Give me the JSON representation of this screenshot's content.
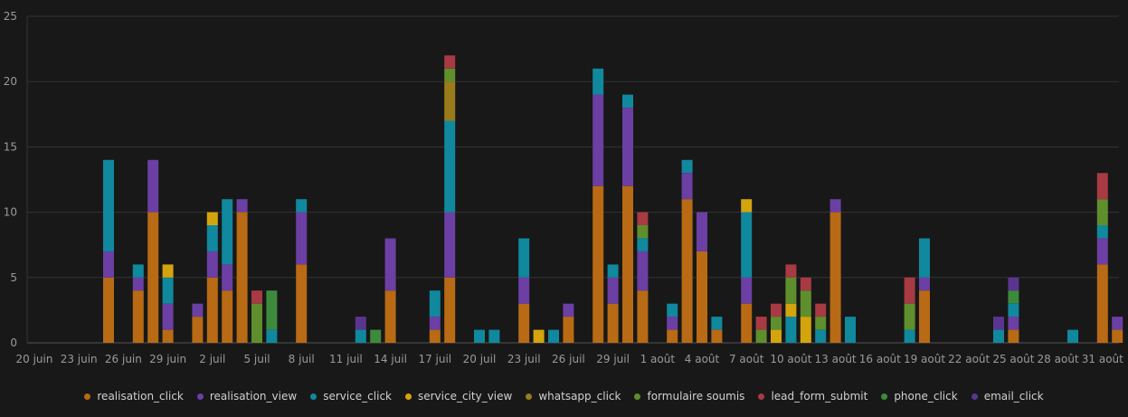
{
  "chart_data": {
    "type": "bar",
    "stacked": true,
    "ylim": [
      0,
      25
    ],
    "yticks": [
      0,
      5,
      10,
      15,
      20,
      25
    ],
    "grid": true,
    "legend_position": "bottom",
    "x": [
      "2025-06-20",
      "2025-06-21",
      "2025-06-22",
      "2025-06-23",
      "2025-06-24",
      "2025-06-25",
      "2025-06-26",
      "2025-06-27",
      "2025-06-28",
      "2025-06-29",
      "2025-06-30",
      "2025-07-01",
      "2025-07-02",
      "2025-07-03",
      "2025-07-04",
      "2025-07-05",
      "2025-07-06",
      "2025-07-07",
      "2025-07-08",
      "2025-07-09",
      "2025-07-10",
      "2025-07-11",
      "2025-07-12",
      "2025-07-13",
      "2025-07-14",
      "2025-07-15",
      "2025-07-16",
      "2025-07-17",
      "2025-07-18",
      "2025-07-19",
      "2025-07-20",
      "2025-07-21",
      "2025-07-22",
      "2025-07-23",
      "2025-07-24",
      "2025-07-25",
      "2025-07-26",
      "2025-07-27",
      "2025-07-28",
      "2025-07-29",
      "2025-07-30",
      "2025-07-31",
      "2025-08-01",
      "2025-08-02",
      "2025-08-03",
      "2025-08-04",
      "2025-08-05",
      "2025-08-06",
      "2025-08-07",
      "2025-08-08",
      "2025-08-09",
      "2025-08-10",
      "2025-08-11",
      "2025-08-12",
      "2025-08-13",
      "2025-08-14",
      "2025-08-15",
      "2025-08-16",
      "2025-08-17",
      "2025-08-18",
      "2025-08-19",
      "2025-08-20",
      "2025-08-21",
      "2025-08-22",
      "2025-08-23",
      "2025-08-24",
      "2025-08-25",
      "2025-08-26",
      "2025-08-27",
      "2025-08-28",
      "2025-08-29",
      "2025-08-30",
      "2025-08-31",
      "2025-09-01"
    ],
    "xticks": [
      {
        "index": 0,
        "label": "20 juin"
      },
      {
        "index": 3,
        "label": "23 juin"
      },
      {
        "index": 6,
        "label": "26 juin"
      },
      {
        "index": 9,
        "label": "29 juin"
      },
      {
        "index": 12,
        "label": "2 juil"
      },
      {
        "index": 15,
        "label": "5 juil"
      },
      {
        "index": 18,
        "label": "8 juil"
      },
      {
        "index": 21,
        "label": "11 juil"
      },
      {
        "index": 24,
        "label": "14 juil"
      },
      {
        "index": 27,
        "label": "17 juil"
      },
      {
        "index": 30,
        "label": "20 juil"
      },
      {
        "index": 33,
        "label": "23 juil"
      },
      {
        "index": 36,
        "label": "26 juil"
      },
      {
        "index": 39,
        "label": "29 juil"
      },
      {
        "index": 42,
        "label": "1 août"
      },
      {
        "index": 45,
        "label": "4 août"
      },
      {
        "index": 48,
        "label": "7 août"
      },
      {
        "index": 51,
        "label": "10 août"
      },
      {
        "index": 54,
        "label": "13 août"
      },
      {
        "index": 57,
        "label": "16 août"
      },
      {
        "index": 60,
        "label": "19 août"
      },
      {
        "index": 63,
        "label": "22 août"
      },
      {
        "index": 66,
        "label": "25 août"
      },
      {
        "index": 69,
        "label": "28 août"
      },
      {
        "index": 72,
        "label": "31 août"
      }
    ],
    "series": [
      {
        "name": "realisation_click",
        "color": "#b86a14",
        "values": [
          0,
          0,
          0,
          0,
          0,
          5,
          0,
          4,
          10,
          1,
          0,
          2,
          5,
          4,
          10,
          0,
          0,
          0,
          6,
          0,
          0,
          0,
          0,
          0,
          4,
          0,
          0,
          1,
          5,
          0,
          0,
          0,
          0,
          3,
          0,
          0,
          2,
          0,
          12,
          3,
          12,
          4,
          0,
          1,
          11,
          7,
          1,
          0,
          3,
          0,
          0,
          0,
          0,
          0,
          10,
          0,
          0,
          0,
          0,
          0,
          4,
          0,
          0,
          0,
          0,
          0,
          1,
          0,
          0,
          0,
          0,
          0,
          6,
          1
        ]
      },
      {
        "name": "realisation_view",
        "color": "#6c3fa4",
        "values": [
          0,
          0,
          0,
          0,
          0,
          2,
          0,
          1,
          4,
          2,
          0,
          1,
          2,
          2,
          1,
          0,
          0,
          0,
          4,
          0,
          0,
          0,
          0,
          0,
          4,
          0,
          0,
          1,
          5,
          0,
          0,
          0,
          0,
          2,
          0,
          0,
          1,
          0,
          7,
          2,
          6,
          3,
          0,
          1,
          2,
          3,
          0,
          0,
          2,
          0,
          0,
          0,
          0,
          0,
          1,
          0,
          0,
          0,
          0,
          0,
          1,
          0,
          0,
          0,
          0,
          0,
          1,
          0,
          0,
          0,
          0,
          0,
          2,
          1
        ]
      },
      {
        "name": "service_click",
        "color": "#10889e",
        "values": [
          0,
          0,
          0,
          0,
          0,
          7,
          0,
          1,
          0,
          2,
          0,
          0,
          2,
          5,
          0,
          0,
          1,
          0,
          1,
          0,
          0,
          0,
          1,
          0,
          0,
          0,
          0,
          2,
          7,
          0,
          1,
          1,
          0,
          3,
          0,
          1,
          0,
          0,
          2,
          1,
          1,
          1,
          0,
          1,
          1,
          0,
          1,
          0,
          5,
          0,
          0,
          2,
          0,
          1,
          0,
          2,
          0,
          0,
          0,
          1,
          3,
          0,
          0,
          0,
          0,
          1,
          1,
          0,
          0,
          0,
          1,
          0,
          1,
          0
        ]
      },
      {
        "name": "service_city_view",
        "color": "#d4a40e",
        "values": [
          0,
          0,
          0,
          0,
          0,
          0,
          0,
          0,
          0,
          1,
          0,
          0,
          1,
          0,
          0,
          0,
          0,
          0,
          0,
          0,
          0,
          0,
          0,
          0,
          0,
          0,
          0,
          0,
          0,
          0,
          0,
          0,
          0,
          0,
          1,
          0,
          0,
          0,
          0,
          0,
          0,
          0,
          0,
          0,
          0,
          0,
          0,
          0,
          1,
          0,
          1,
          1,
          2,
          0,
          0,
          0,
          0,
          0,
          0,
          0,
          0,
          0,
          0,
          0,
          0,
          0,
          0,
          0,
          0,
          0,
          0,
          0,
          0,
          0
        ]
      },
      {
        "name": "whatsapp_click",
        "color": "#9a7b1c",
        "values": [
          0,
          0,
          0,
          0,
          0,
          0,
          0,
          0,
          0,
          0,
          0,
          0,
          0,
          0,
          0,
          0,
          0,
          0,
          0,
          0,
          0,
          0,
          0,
          0,
          0,
          0,
          0,
          0,
          3,
          0,
          0,
          0,
          0,
          0,
          0,
          0,
          0,
          0,
          0,
          0,
          0,
          0,
          0,
          0,
          0,
          0,
          0,
          0,
          0,
          0,
          0,
          0,
          0,
          0,
          0,
          0,
          0,
          0,
          0,
          0,
          0,
          0,
          0,
          0,
          0,
          0,
          0,
          0,
          0,
          0,
          0,
          0,
          0,
          0
        ]
      },
      {
        "name": "formulaire soumis",
        "color": "#5e8f2c",
        "values": [
          0,
          0,
          0,
          0,
          0,
          0,
          0,
          0,
          0,
          0,
          0,
          0,
          0,
          0,
          0,
          3,
          0,
          0,
          0,
          0,
          0,
          0,
          0,
          0,
          0,
          0,
          0,
          0,
          1,
          0,
          0,
          0,
          0,
          0,
          0,
          0,
          0,
          0,
          0,
          0,
          0,
          1,
          0,
          0,
          0,
          0,
          0,
          0,
          0,
          1,
          1,
          2,
          2,
          1,
          0,
          0,
          0,
          0,
          0,
          2,
          0,
          0,
          0,
          0,
          0,
          0,
          0,
          0,
          0,
          0,
          0,
          0,
          2,
          0
        ]
      },
      {
        "name": "lead_form_submit",
        "color": "#a83a44",
        "values": [
          0,
          0,
          0,
          0,
          0,
          0,
          0,
          0,
          0,
          0,
          0,
          0,
          0,
          0,
          0,
          1,
          0,
          0,
          0,
          0,
          0,
          0,
          0,
          0,
          0,
          0,
          0,
          0,
          1,
          0,
          0,
          0,
          0,
          0,
          0,
          0,
          0,
          0,
          0,
          0,
          0,
          1,
          0,
          0,
          0,
          0,
          0,
          0,
          0,
          1,
          1,
          1,
          1,
          1,
          0,
          0,
          0,
          0,
          0,
          2,
          0,
          0,
          0,
          0,
          0,
          0,
          0,
          0,
          0,
          0,
          0,
          0,
          2,
          0
        ]
      },
      {
        "name": "phone_click",
        "color": "#3d8a3d",
        "values": [
          0,
          0,
          0,
          0,
          0,
          0,
          0,
          0,
          0,
          0,
          0,
          0,
          0,
          0,
          0,
          0,
          3,
          0,
          0,
          0,
          0,
          0,
          0,
          1,
          0,
          0,
          0,
          0,
          0,
          0,
          0,
          0,
          0,
          0,
          0,
          0,
          0,
          0,
          0,
          0,
          0,
          0,
          0,
          0,
          0,
          0,
          0,
          0,
          0,
          0,
          0,
          0,
          0,
          0,
          0,
          0,
          0,
          0,
          0,
          0,
          0,
          0,
          0,
          0,
          0,
          0,
          1,
          0,
          0,
          0,
          0,
          0,
          0,
          0
        ]
      },
      {
        "name": "email_click",
        "color": "#5a3590",
        "values": [
          0,
          0,
          0,
          0,
          0,
          0,
          0,
          0,
          0,
          0,
          0,
          0,
          0,
          0,
          0,
          0,
          0,
          0,
          0,
          0,
          0,
          0,
          1,
          0,
          0,
          0,
          0,
          0,
          0,
          0,
          0,
          0,
          0,
          0,
          0,
          0,
          0,
          0,
          0,
          0,
          0,
          0,
          0,
          0,
          0,
          0,
          0,
          0,
          0,
          0,
          0,
          0,
          0,
          0,
          0,
          0,
          0,
          0,
          0,
          0,
          0,
          0,
          0,
          0,
          0,
          1,
          1,
          0,
          0,
          0,
          0,
          0,
          0,
          0
        ]
      }
    ]
  }
}
